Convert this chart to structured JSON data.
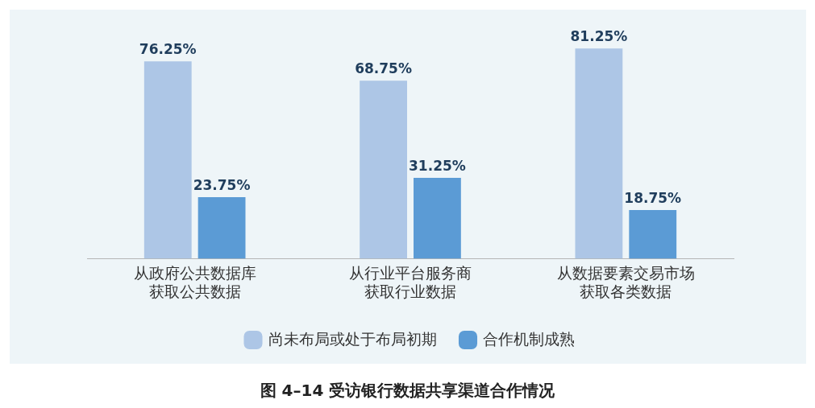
{
  "chart_data": {
    "type": "bar",
    "title": "图 4–14 受访银行数据共享渠道合作情况",
    "categories": [
      "从政府公共数据库获取公共数据",
      "从行业平台服务商获取行业数据",
      "从数据要素交易市场获取各类数据"
    ],
    "series": [
      {
        "name": "尚未布局或处于布局初期",
        "color": "#adc6e6",
        "values": [
          76.25,
          68.75,
          81.25
        ],
        "value_labels": [
          "76.25%",
          "68.75%",
          "81.25%"
        ]
      },
      {
        "name": "合作机制成熟",
        "color": "#5b9bd5",
        "values": [
          23.75,
          31.25,
          18.75
        ],
        "value_labels": [
          "23.75%",
          "31.25%",
          "18.75%"
        ]
      }
    ],
    "legend": "bottom",
    "grid": false
  }
}
